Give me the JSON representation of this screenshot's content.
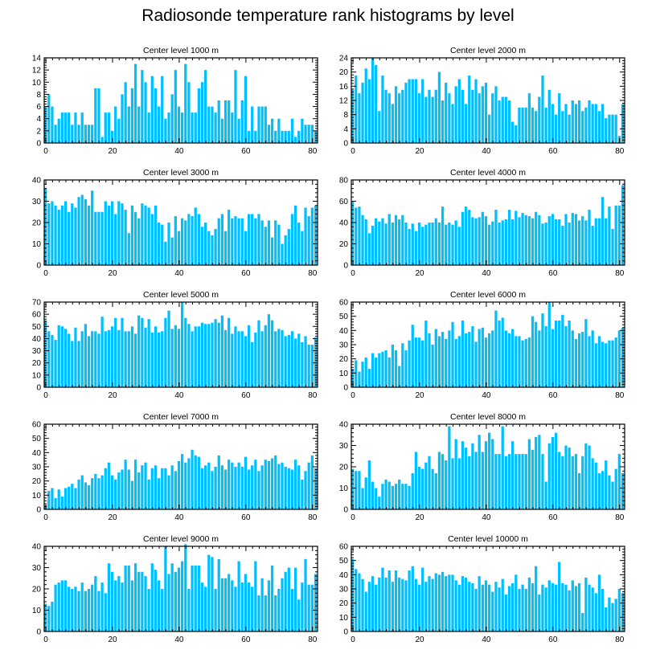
{
  "title": "Radiosonde temperature rank histograms by level",
  "bar_color": "#00BFFF",
  "chart_data": [
    {
      "type": "bar",
      "title": "Center level 1000 m",
      "xlim": [
        -0.5,
        81.5
      ],
      "ylim": [
        0,
        14
      ],
      "xticks": [
        0,
        20,
        40,
        60,
        80
      ],
      "yticks": [
        0,
        2,
        4,
        6,
        8,
        10,
        12,
        14
      ],
      "values": [
        6,
        8,
        6,
        3,
        4,
        5,
        5,
        5,
        3,
        5,
        3,
        5,
        3,
        3,
        3,
        9,
        9,
        1,
        5,
        5,
        2,
        6,
        4,
        8,
        10,
        6,
        9,
        13,
        6,
        12,
        10,
        5,
        11,
        9,
        6,
        11,
        4,
        5,
        8,
        12,
        6,
        5,
        13,
        10,
        5,
        5,
        9,
        10,
        12,
        6,
        6,
        5,
        7,
        4,
        7,
        7,
        5,
        12,
        4,
        7,
        11,
        2,
        6,
        2,
        6,
        6,
        6,
        3,
        4,
        2,
        4,
        2,
        2,
        2,
        4,
        1,
        2,
        4,
        3,
        3,
        3,
        2
      ]
    },
    {
      "type": "bar",
      "title": "Center level 2000 m",
      "xlim": [
        -0.5,
        81.5
      ],
      "ylim": [
        0,
        24
      ],
      "xticks": [
        0,
        20,
        40,
        60,
        80
      ],
      "yticks": [
        0,
        4,
        8,
        12,
        16,
        20,
        24
      ],
      "values": [
        15,
        19,
        14,
        17,
        21,
        18,
        24,
        22,
        9,
        19,
        15,
        14,
        11,
        16,
        14,
        15,
        17,
        18,
        18,
        18,
        14,
        18,
        13,
        15,
        13,
        15,
        20,
        12,
        17,
        14,
        11,
        16,
        18,
        15,
        11,
        19,
        15,
        18,
        14,
        16,
        17,
        8,
        14,
        16,
        12,
        13,
        13,
        12,
        6,
        5,
        10,
        10,
        10,
        14,
        10,
        9,
        13,
        19,
        10,
        15,
        11,
        8,
        14,
        9,
        11,
        8,
        12,
        11,
        12,
        9,
        10,
        12,
        11,
        11,
        9,
        11,
        7,
        8,
        8,
        8,
        2,
        11
      ]
    },
    {
      "type": "bar",
      "title": "Center level 3000 m",
      "xlim": [
        -0.5,
        81.5
      ],
      "ylim": [
        0,
        40
      ],
      "xticks": [
        0,
        20,
        40,
        60,
        80
      ],
      "yticks": [
        0,
        10,
        20,
        30,
        40
      ],
      "values": [
        36,
        29,
        30,
        28,
        26,
        28,
        30,
        25,
        29,
        27,
        32,
        33,
        31,
        28,
        35,
        25,
        25,
        25,
        30,
        28,
        30,
        24,
        30,
        29,
        26,
        15,
        28,
        25,
        22,
        29,
        28,
        27,
        24,
        28,
        20,
        19,
        11,
        20,
        13,
        23,
        16,
        22,
        21,
        24,
        23,
        27,
        24,
        18,
        20,
        16,
        14,
        17,
        22,
        24,
        16,
        26,
        22,
        23,
        22,
        22,
        16,
        24,
        24,
        22,
        24,
        21,
        18,
        21,
        13,
        21,
        19,
        10,
        14,
        17,
        24,
        28,
        20,
        16,
        27,
        23,
        27,
        28
      ]
    },
    {
      "type": "bar",
      "title": "Center level 4000 m",
      "xlim": [
        -0.5,
        81.5
      ],
      "ylim": [
        0,
        80
      ],
      "xticks": [
        0,
        20,
        40,
        60,
        80
      ],
      "yticks": [
        0,
        20,
        40,
        60,
        80
      ],
      "values": [
        60,
        54,
        55,
        47,
        43,
        30,
        37,
        44,
        41,
        44,
        39,
        48,
        40,
        47,
        43,
        47,
        40,
        34,
        39,
        32,
        40,
        36,
        38,
        40,
        40,
        44,
        40,
        55,
        38,
        40,
        38,
        42,
        36,
        50,
        55,
        52,
        45,
        44,
        45,
        50,
        46,
        38,
        41,
        52,
        40,
        42,
        43,
        52,
        43,
        51,
        45,
        49,
        47,
        46,
        44,
        50,
        47,
        39,
        40,
        46,
        48,
        43,
        43,
        37,
        48,
        40,
        49,
        48,
        42,
        46,
        42,
        52,
        37,
        44,
        44,
        64,
        44,
        55,
        34,
        56,
        56,
        75
      ]
    },
    {
      "type": "bar",
      "title": "Center level 5000 m",
      "xlim": [
        -0.5,
        81.5
      ],
      "ylim": [
        0,
        70
      ],
      "xticks": [
        0,
        20,
        40,
        60,
        80
      ],
      "yticks": [
        0,
        10,
        20,
        30,
        40,
        50,
        60,
        70
      ],
      "values": [
        55,
        46,
        43,
        39,
        51,
        50,
        48,
        44,
        38,
        49,
        38,
        46,
        52,
        42,
        46,
        46,
        44,
        58,
        46,
        47,
        50,
        57,
        47,
        57,
        46,
        46,
        50,
        44,
        59,
        57,
        49,
        56,
        45,
        50,
        45,
        46,
        57,
        63,
        48,
        51,
        48,
        70,
        57,
        52,
        46,
        50,
        50,
        53,
        52,
        52,
        53,
        56,
        53,
        59,
        47,
        57,
        44,
        50,
        46,
        46,
        42,
        51,
        37,
        45,
        55,
        46,
        51,
        60,
        55,
        46,
        48,
        47,
        42,
        43,
        46,
        40,
        44,
        37,
        42,
        35,
        35,
        41
      ]
    },
    {
      "type": "bar",
      "title": "Center level 6000 m",
      "xlim": [
        -0.5,
        81.5
      ],
      "ylim": [
        0,
        60
      ],
      "xticks": [
        0,
        20,
        40,
        60,
        80
      ],
      "yticks": [
        0,
        10,
        20,
        30,
        40,
        50,
        60
      ],
      "values": [
        13,
        19,
        11,
        18,
        21,
        13,
        24,
        21,
        24,
        25,
        26,
        21,
        30,
        26,
        15,
        31,
        26,
        33,
        44,
        35,
        35,
        33,
        47,
        38,
        30,
        41,
        36,
        39,
        34,
        40,
        46,
        34,
        36,
        47,
        38,
        39,
        43,
        32,
        41,
        42,
        35,
        38,
        40,
        54,
        47,
        49,
        40,
        38,
        41,
        36,
        36,
        33,
        34,
        35,
        50,
        46,
        40,
        52,
        43,
        60,
        41,
        47,
        47,
        51,
        43,
        47,
        40,
        34,
        38,
        39,
        48,
        36,
        40,
        31,
        36,
        32,
        31,
        33,
        33,
        35,
        40,
        42
      ]
    },
    {
      "type": "bar",
      "title": "Center level 7000 m",
      "xlim": [
        -0.5,
        81.5
      ],
      "ylim": [
        0,
        60
      ],
      "xticks": [
        0,
        20,
        40,
        60,
        80
      ],
      "yticks": [
        0,
        10,
        20,
        30,
        40,
        50,
        60
      ],
      "values": [
        3,
        13,
        15,
        8,
        14,
        9,
        15,
        16,
        18,
        15,
        21,
        24,
        19,
        17,
        22,
        25,
        22,
        24,
        29,
        33,
        24,
        21,
        26,
        28,
        35,
        28,
        20,
        35,
        26,
        31,
        33,
        21,
        29,
        31,
        22,
        29,
        29,
        24,
        31,
        27,
        34,
        39,
        33,
        36,
        42,
        38,
        37,
        29,
        31,
        33,
        27,
        30,
        38,
        31,
        28,
        35,
        33,
        30,
        33,
        30,
        37,
        28,
        31,
        35,
        27,
        31,
        35,
        34,
        36,
        38,
        32,
        33,
        30,
        29,
        28,
        35,
        31,
        21,
        27,
        33,
        38,
        29
      ]
    },
    {
      "type": "bar",
      "title": "Center level 8000 m",
      "xlim": [
        -0.5,
        81.5
      ],
      "ylim": [
        0,
        40
      ],
      "xticks": [
        0,
        20,
        40,
        60,
        80
      ],
      "yticks": [
        0,
        10,
        20,
        30,
        40
      ],
      "values": [
        19,
        18,
        18,
        10,
        15,
        23,
        13,
        10,
        6,
        12,
        14,
        13,
        11,
        12,
        14,
        12,
        12,
        11,
        17,
        27,
        20,
        19,
        22,
        25,
        19,
        17,
        27,
        26,
        23,
        39,
        24,
        33,
        24,
        32,
        29,
        25,
        31,
        27,
        35,
        27,
        32,
        36,
        33,
        26,
        26,
        39,
        25,
        26,
        32,
        26,
        26,
        26,
        26,
        33,
        28,
        34,
        35,
        26,
        13,
        31,
        34,
        36,
        27,
        25,
        30,
        29,
        25,
        26,
        17,
        25,
        31,
        30,
        24,
        22,
        17,
        18,
        23,
        16,
        13,
        19,
        26,
        17
      ]
    },
    {
      "type": "bar",
      "title": "Center level 9000 m",
      "xlim": [
        -0.5,
        81.5
      ],
      "ylim": [
        0,
        40
      ],
      "xticks": [
        0,
        20,
        40,
        60,
        80
      ],
      "yticks": [
        0,
        10,
        20,
        30,
        40
      ],
      "values": [
        13,
        12,
        14,
        22,
        23,
        24,
        24,
        21,
        20,
        21,
        19,
        23,
        19,
        20,
        22,
        26,
        19,
        23,
        18,
        32,
        28,
        24,
        26,
        23,
        31,
        31,
        24,
        32,
        28,
        28,
        26,
        20,
        32,
        29,
        24,
        20,
        40,
        27,
        32,
        28,
        30,
        33,
        41,
        20,
        31,
        31,
        31,
        23,
        21,
        36,
        35,
        20,
        34,
        25,
        25,
        27,
        24,
        21,
        33,
        23,
        27,
        23,
        21,
        33,
        17,
        25,
        17,
        24,
        31,
        17,
        20,
        25,
        28,
        30,
        20,
        30,
        15,
        23,
        34,
        22,
        22,
        27
      ]
    },
    {
      "type": "bar",
      "title": "Center level 10000 m",
      "xlim": [
        -0.5,
        81.5
      ],
      "ylim": [
        0,
        60
      ],
      "xticks": [
        0,
        20,
        40,
        60,
        80
      ],
      "yticks": [
        0,
        10,
        20,
        30,
        40,
        50,
        60
      ],
      "values": [
        51,
        44,
        41,
        37,
        28,
        35,
        39,
        33,
        38,
        45,
        38,
        43,
        35,
        43,
        38,
        37,
        36,
        43,
        46,
        37,
        33,
        45,
        35,
        39,
        37,
        41,
        40,
        42,
        39,
        40,
        40,
        36,
        33,
        39,
        38,
        35,
        34,
        30,
        39,
        33,
        36,
        33,
        28,
        35,
        31,
        37,
        26,
        32,
        34,
        40,
        30,
        33,
        30,
        38,
        34,
        46,
        26,
        33,
        31,
        36,
        34,
        33,
        49,
        34,
        33,
        29,
        36,
        32,
        34,
        13,
        38,
        33,
        31,
        27,
        40,
        30,
        17,
        24,
        20,
        23,
        30,
        27
      ]
    }
  ]
}
